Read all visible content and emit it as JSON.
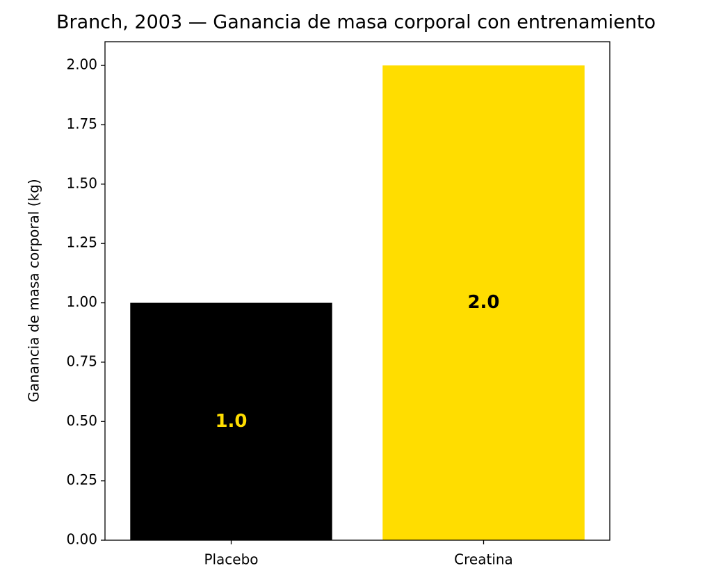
{
  "chart_data": {
    "type": "bar",
    "title": "Branch, 2003 — Ganancia de masa corporal con entrenamiento",
    "ylabel": "Ganancia de masa corporal (kg)",
    "categories": [
      "Placebo",
      "Creatina"
    ],
    "values": [
      1.0,
      2.0
    ],
    "value_labels": [
      "1.0",
      "2.0"
    ],
    "colors": [
      "#000000",
      "#ffdd00"
    ],
    "label_colors": [
      "#ffdd00",
      "#000000"
    ],
    "ylim": [
      0,
      2.1
    ],
    "yticks": [
      {
        "value": 0,
        "label": "0.00"
      },
      {
        "value": 0.25,
        "label": "0.25"
      },
      {
        "value": 0.5,
        "label": "0.50"
      },
      {
        "value": 0.75,
        "label": "0.75"
      },
      {
        "value": 1.0,
        "label": "1.00"
      },
      {
        "value": 1.25,
        "label": "1.25"
      },
      {
        "value": 1.5,
        "label": "1.50"
      },
      {
        "value": 1.75,
        "label": "1.75"
      },
      {
        "value": 2.0,
        "label": "2.00"
      }
    ],
    "grid": false
  }
}
